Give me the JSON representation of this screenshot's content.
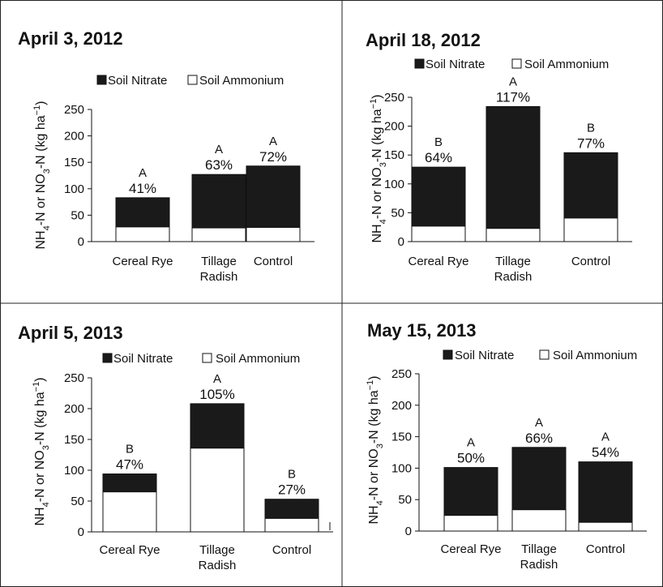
{
  "chart_data": [
    {
      "type": "bar",
      "stacked": true,
      "title": "April 3, 2012",
      "ylabel": "NH4-N or NO3-N (kg ha−1)",
      "ylim": [
        0,
        250
      ],
      "yticks": [
        0,
        50,
        100,
        150,
        200,
        250
      ],
      "categories": [
        "Cereal Rye",
        "Tillage Radish",
        "Control"
      ],
      "series": [
        {
          "name": "Soil Ammonium",
          "color": "#ffffff",
          "values": [
            28,
            26,
            27
          ]
        },
        {
          "name": "Soil Nitrate",
          "color": "#1a1a1a",
          "values": [
            55,
            101,
            116
          ]
        }
      ],
      "totals": [
        83,
        127,
        143
      ],
      "percent_labels": [
        "41%",
        "63%",
        "72%"
      ],
      "letter_labels": [
        "A",
        "A",
        "A"
      ],
      "legend": "top",
      "grid": false
    },
    {
      "type": "bar",
      "stacked": true,
      "title": "April 18, 2012",
      "ylabel": "NH4-N or NO3-N (kg ha−1)",
      "ylim": [
        0,
        250
      ],
      "yticks": [
        0,
        50,
        100,
        150,
        200,
        250
      ],
      "categories": [
        "Cereal Rye",
        "Tillage Radish",
        "Control"
      ],
      "series": [
        {
          "name": "Soil Ammonium",
          "color": "#ffffff",
          "values": [
            27,
            23,
            41
          ]
        },
        {
          "name": "Soil Nitrate",
          "color": "#1a1a1a",
          "values": [
            102,
            211,
            113
          ]
        }
      ],
      "totals": [
        129,
        234,
        154
      ],
      "percent_labels": [
        "64%",
        "117%",
        "77%"
      ],
      "letter_labels": [
        "B",
        "A",
        "B"
      ],
      "legend": "top",
      "grid": false
    },
    {
      "type": "bar",
      "stacked": true,
      "title": "April 5, 2013",
      "ylabel": "NH4-N or NO3-N (kg ha−1)",
      "ylim": [
        0,
        250
      ],
      "yticks": [
        0,
        50,
        100,
        150,
        200,
        250
      ],
      "categories": [
        "Cereal Rye",
        "Tillage Radish",
        "Control"
      ],
      "series": [
        {
          "name": "Soil Ammonium",
          "color": "#ffffff",
          "values": [
            65,
            136,
            22
          ]
        },
        {
          "name": "Soil Nitrate",
          "color": "#1a1a1a",
          "values": [
            29,
            72,
            31
          ]
        }
      ],
      "totals": [
        94,
        208,
        53
      ],
      "percent_labels": [
        "47%",
        "105%",
        "27%"
      ],
      "letter_labels": [
        "B",
        "A",
        "B"
      ],
      "legend": "top",
      "grid": false
    },
    {
      "type": "bar",
      "stacked": true,
      "title": "May 15, 2013",
      "ylabel": "NH4-N or NO3-N (kg ha−1)",
      "ylim": [
        0,
        250
      ],
      "yticks": [
        0,
        50,
        100,
        150,
        200,
        250
      ],
      "categories": [
        "Cereal Rye",
        "Tillage Radish",
        "Control"
      ],
      "series": [
        {
          "name": "Soil Ammonium",
          "color": "#ffffff",
          "values": [
            25,
            34,
            14
          ]
        },
        {
          "name": "Soil Nitrate",
          "color": "#1a1a1a",
          "values": [
            76,
            99,
            96
          ]
        }
      ],
      "totals": [
        101,
        133,
        110
      ],
      "percent_labels": [
        "50%",
        "66%",
        "54%"
      ],
      "letter_labels": [
        "A",
        "A",
        "A"
      ],
      "legend": "top",
      "grid": false
    }
  ]
}
